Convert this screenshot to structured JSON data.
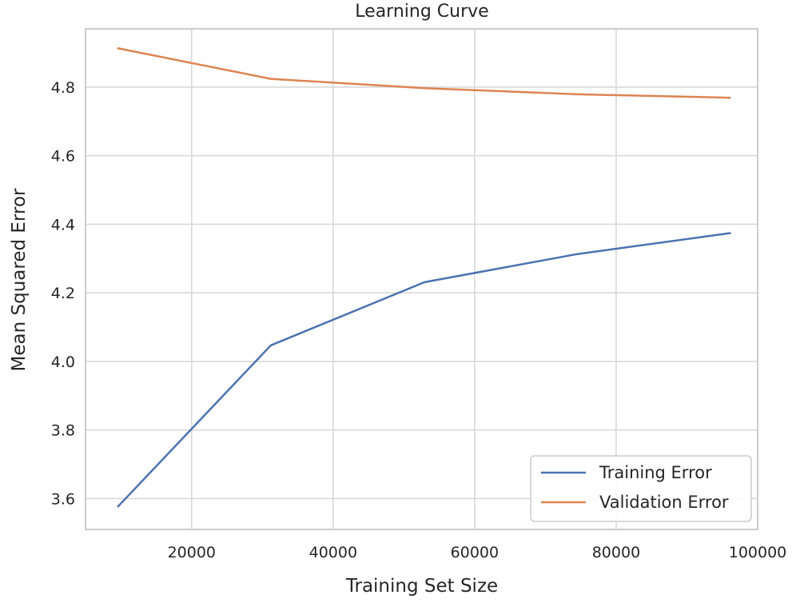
{
  "chart_data": {
    "type": "line",
    "title": "Learning Curve",
    "xlabel": "Training Set Size",
    "ylabel": "Mean Squared Error",
    "xlim": [
      5000,
      100000
    ],
    "ylim": [
      3.51,
      4.97
    ],
    "xticks": [
      20000,
      40000,
      60000,
      80000,
      100000
    ],
    "yticks": [
      3.6,
      3.8,
      4.0,
      4.2,
      4.4,
      4.6,
      4.8
    ],
    "ytick_labels": [
      "3.6",
      "3.8",
      "4.0",
      "4.2",
      "4.4",
      "4.6",
      "4.8"
    ],
    "grid": true,
    "legend_position": "lower-right",
    "series": [
      {
        "name": "Training Error",
        "color": "#4c72b0",
        "x": [
          9600,
          31200,
          52900,
          74500,
          96100
        ],
        "y": [
          3.577,
          4.047,
          4.231,
          4.313,
          4.374
        ]
      },
      {
        "name": "Validation Error",
        "color": "#dd8452",
        "x": [
          9600,
          31200,
          52900,
          74500,
          96100
        ],
        "y": [
          4.913,
          4.824,
          4.797,
          4.779,
          4.769
        ]
      }
    ]
  }
}
